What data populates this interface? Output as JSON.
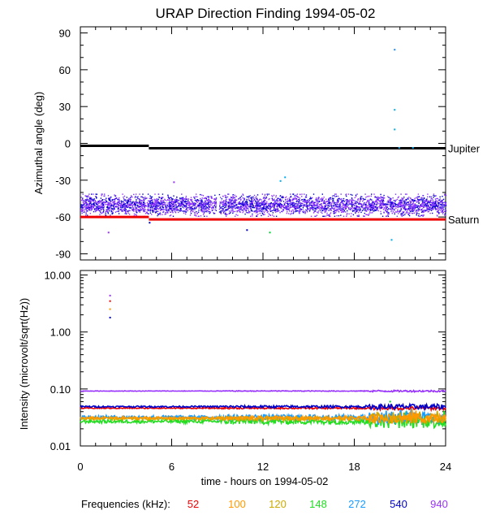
{
  "chart_data": [
    {
      "type": "scatter",
      "title": "URAP Direction Finding  1994-05-02",
      "ylabel": "Azimuthal angle (deg)",
      "xlim": [
        0,
        24
      ],
      "ylim": [
        -95,
        95
      ],
      "yticks": [
        90,
        60,
        30,
        0,
        -30,
        -60,
        -90
      ],
      "ytick_labels": [
        "90",
        "60",
        "30",
        "0",
        "-30",
        "-60",
        "-90"
      ],
      "reference_lines": [
        {
          "name": "Jupiter",
          "color": "#000000",
          "segments": [
            [
              0,
              4.5,
              -2
            ],
            [
              4.5,
              24,
              -4
            ]
          ]
        },
        {
          "name": "Saturn",
          "color": "#ee0000",
          "segments": [
            [
              0,
              4.5,
              -60
            ],
            [
              4.5,
              24,
              -62
            ]
          ]
        }
      ],
      "scatter_band": {
        "x_range": [
          0,
          24
        ],
        "y_center": -50,
        "y_spread": 7,
        "colors": [
          "#9933ff",
          "#7733ff",
          "#0000cc"
        ],
        "gaps": [
          [
            8.9,
            9.1
          ]
        ]
      },
      "outliers": [
        {
          "x": 20.6,
          "y": 77,
          "color": "#1a88ff"
        },
        {
          "x": 20.6,
          "y": 28,
          "color": "#00aaee"
        },
        {
          "x": 20.6,
          "y": 12,
          "color": "#00aaee"
        },
        {
          "x": 20.9,
          "y": -3,
          "color": "#00aaee"
        },
        {
          "x": 21.8,
          "y": -3,
          "color": "#00aaee"
        },
        {
          "x": 1.8,
          "y": -72,
          "color": "#9933ff"
        },
        {
          "x": 13.4,
          "y": -27,
          "color": "#00aaee"
        },
        {
          "x": 13.1,
          "y": -30,
          "color": "#00aaee"
        },
        {
          "x": 6.1,
          "y": -31,
          "color": "#9933ff"
        },
        {
          "x": 10.9,
          "y": -70,
          "color": "#0000cc"
        },
        {
          "x": 12.4,
          "y": -72,
          "color": "#00cc33"
        },
        {
          "x": 20.4,
          "y": -78,
          "color": "#00aaee"
        },
        {
          "x": 4.5,
          "y": -64,
          "color": "#0000cc"
        }
      ]
    },
    {
      "type": "line",
      "ylabel": "Intensity (microvolt/sqrt(Hz))",
      "xlabel": "time - hours on 1994-05-02",
      "xlim": [
        0,
        24
      ],
      "ylim": [
        0.01,
        12
      ],
      "yscale": "log",
      "xticks": [
        0,
        6,
        12,
        18,
        24
      ],
      "xtick_labels": [
        "0",
        "6",
        "12",
        "18",
        "24"
      ],
      "yticks": [
        10,
        1,
        0.1,
        0.01
      ],
      "ytick_labels": [
        "10.00",
        "1.00",
        "0.10",
        "0.01"
      ],
      "series": [
        {
          "name": "52",
          "color": "#ee0000",
          "base": 0.046,
          "noise": 0.02
        },
        {
          "name": "100",
          "color": "#ff9900",
          "base": 0.031,
          "noise": 0.05
        },
        {
          "name": "120",
          "color": "#ccaa00",
          "base": 0.03,
          "noise": 0.05
        },
        {
          "name": "148",
          "color": "#22dd22",
          "base": 0.027,
          "noise": 0.07
        },
        {
          "name": "272",
          "color": "#1a9cff",
          "base": 0.032,
          "noise": 0.07
        },
        {
          "name": "540",
          "color": "#0000cc",
          "base": 0.049,
          "noise": 0.03
        },
        {
          "name": "940",
          "color": "#9933ff",
          "base": 0.092,
          "noise": 0.01
        }
      ],
      "spikes": [
        {
          "x": 1.9,
          "y": 4.5,
          "color": "#9933ff"
        },
        {
          "x": 1.9,
          "y": 3.6,
          "color": "#ee0000"
        },
        {
          "x": 1.9,
          "y": 2.6,
          "color": "#ff9900"
        },
        {
          "x": 1.9,
          "y": 1.85,
          "color": "#0000cc"
        },
        {
          "x": 20.3,
          "y": 0.062,
          "color": "#00cc33"
        }
      ]
    }
  ],
  "legend": {
    "label": "Frequencies (kHz):",
    "items": [
      {
        "text": "52",
        "color": "#ee0000"
      },
      {
        "text": "100",
        "color": "#ff9900"
      },
      {
        "text": "120",
        "color": "#ccaa00"
      },
      {
        "text": "148",
        "color": "#22dd22"
      },
      {
        "text": "272",
        "color": "#1a9cff"
      },
      {
        "text": "540",
        "color": "#0000cc"
      },
      {
        "text": "940",
        "color": "#9933ff"
      }
    ]
  }
}
